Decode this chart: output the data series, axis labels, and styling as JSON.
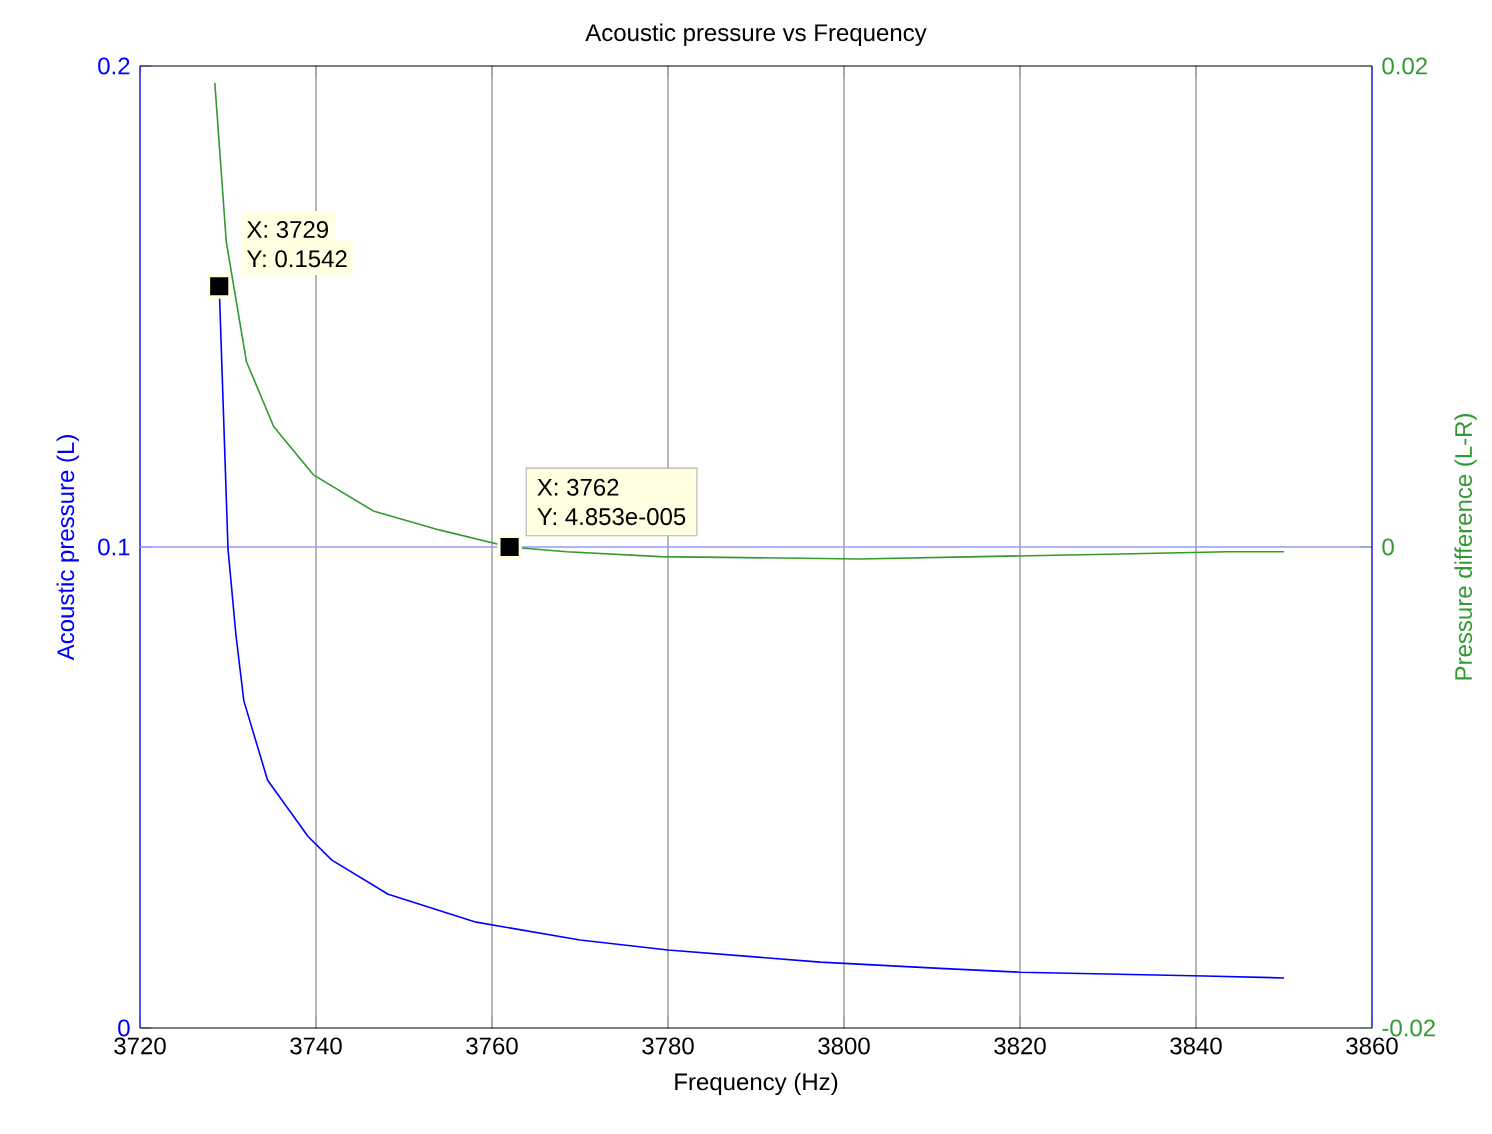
{
  "chart_data": {
    "type": "line",
    "title": "Acoustic pressure vs Frequency",
    "xlabel": "Frequency (Hz)",
    "ylabel": "Acoustic pressure (L)",
    "y2label": "Pressure difference (L-R)",
    "x": [
      3729,
      3730,
      3730.9,
      3731.8,
      3734.5,
      3739.1,
      3741.8,
      3748.2,
      3758.2,
      3770,
      3780,
      3797.3,
      3810.9,
      3820,
      3841,
      3850
    ],
    "series": [
      {
        "color": "#0000ff",
        "axis": "y",
        "values": [
          0.1542,
          0.0996,
          0.0817,
          0.068,
          0.0515,
          0.0398,
          0.0349,
          0.0278,
          0.022,
          0.0183,
          0.0162,
          0.0137,
          0.0124,
          0.0116,
          0.0108,
          0.0104
        ]
      },
      {
        "color": "#339933",
        "axis": "y2",
        "x": [
          3728.5,
          3729.8,
          3732.1,
          3735.2,
          3739.7,
          3746.5,
          3754.1,
          3762,
          3768.5,
          3779.1,
          3801.8,
          3815.5,
          3830,
          3843.6,
          3850
        ],
        "values": [
          0.0193,
          0.0127,
          0.0077,
          0.005,
          0.003,
          0.0015,
          0.0007,
          0.0,
          -0.0002,
          -0.0004,
          -0.0005,
          -0.0004,
          -0.0003,
          -0.0002,
          -0.0002
        ]
      }
    ],
    "xlim": [
      3720,
      3860
    ],
    "xticks": [
      3720,
      3740,
      3760,
      3780,
      3800,
      3820,
      3840,
      3860
    ],
    "ylim": [
      0,
      0.2
    ],
    "yticks": [
      0,
      0.1,
      0.2
    ],
    "y2lim": [
      -0.02,
      0.02
    ],
    "y2ticks": [
      -0.02,
      0,
      0.02
    ],
    "grid": "x",
    "ref_lines": [
      {
        "axis": "y",
        "value": 0.1,
        "color": "#9999ff"
      }
    ],
    "annotations": [
      {
        "text": "X: 3729",
        "x": 3729,
        "y": 0.1542
      },
      {
        "text": "Y: 0.1542",
        "x": 3729,
        "y": 0.1542
      },
      "X: 3762",
      "Y: 4.853e-005"
    ]
  }
}
